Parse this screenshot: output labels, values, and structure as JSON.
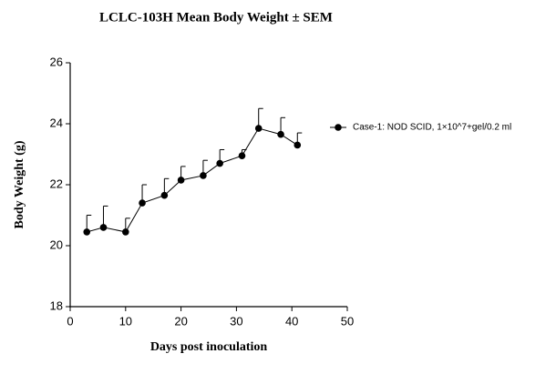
{
  "chart_data": {
    "type": "line",
    "title": "LCLC-103H Mean Body Weight ± SEM",
    "x_label": "Days post inoculation",
    "y_label": "Body Weight (g)",
    "x": [
      3,
      6,
      10,
      13,
      17,
      20,
      24,
      27,
      31,
      34,
      38,
      41
    ],
    "series": [
      {
        "name": "Case-1: NOD SCID, 1×10^7+gel/0.2 ml",
        "color": "#000000",
        "values": [
          20.45,
          20.6,
          20.45,
          21.4,
          21.65,
          22.15,
          22.3,
          22.7,
          22.95,
          23.85,
          23.65,
          23.3
        ],
        "errors": [
          0.55,
          0.7,
          0.45,
          0.6,
          0.55,
          0.45,
          0.5,
          0.45,
          0.2,
          0.65,
          0.55,
          0.4
        ]
      }
    ],
    "xlim": [
      0,
      50
    ],
    "xticks": [
      0,
      10,
      20,
      30,
      40,
      50
    ],
    "ylim": [
      18,
      26
    ],
    "yticks": [
      18,
      20,
      22,
      24,
      26
    ],
    "grid": false,
    "legend": "right"
  }
}
